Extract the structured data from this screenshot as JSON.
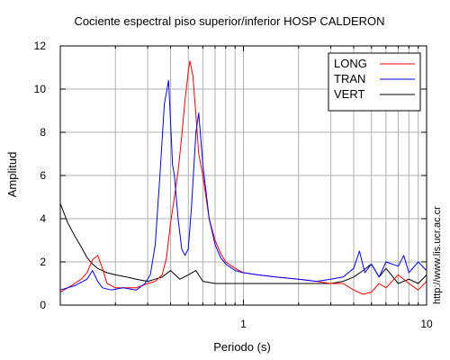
{
  "chart_data": {
    "type": "line",
    "title": "Cociente espectral piso superior/inferior  HOSP CALDERON",
    "xlabel": "Periodo (s)",
    "ylabel": "Amplitud",
    "xscale": "log",
    "xlim": [
      0.1,
      10
    ],
    "ylim": [
      0,
      12
    ],
    "x_ticks": [
      1,
      10
    ],
    "x_tick_labels": [
      "1",
      "10"
    ],
    "y_ticks": [
      0,
      2,
      4,
      6,
      8,
      10,
      12
    ],
    "y_tick_labels": [
      "0",
      "2",
      "4",
      "6",
      "8",
      "10",
      "12"
    ],
    "grid": true,
    "legend": {
      "position": "top-right",
      "entries": [
        "LONG",
        "TRAN",
        "VERT"
      ]
    },
    "series": [
      {
        "name": "LONG",
        "color": "#ff0000",
        "x": [
          0.1,
          0.11,
          0.12,
          0.13,
          0.14,
          0.15,
          0.16,
          0.17,
          0.18,
          0.2,
          0.23,
          0.26,
          0.3,
          0.33,
          0.36,
          0.38,
          0.4,
          0.42,
          0.44,
          0.46,
          0.48,
          0.5,
          0.51,
          0.53,
          0.55,
          0.57,
          0.6,
          0.65,
          0.7,
          0.75,
          0.8,
          0.9,
          1.0,
          1.2,
          1.5,
          2.0,
          2.5,
          3.0,
          3.5,
          4.0,
          4.5,
          5.0,
          5.5,
          6.0,
          7.0,
          8.0,
          9.0,
          10.0
        ],
        "y": [
          0.6,
          0.8,
          1.0,
          1.2,
          1.5,
          2.1,
          2.3,
          1.7,
          1.0,
          0.8,
          0.8,
          0.8,
          1.0,
          1.1,
          1.4,
          2.2,
          3.8,
          5.0,
          6.2,
          7.8,
          9.5,
          10.8,
          11.3,
          10.6,
          8.8,
          7.0,
          6.0,
          4.0,
          3.0,
          2.4,
          2.0,
          1.7,
          1.5,
          1.4,
          1.3,
          1.2,
          1.1,
          1.0,
          1.0,
          0.7,
          0.5,
          0.6,
          1.0,
          0.8,
          1.4,
          1.0,
          0.7,
          1.1
        ]
      },
      {
        "name": "TRAN",
        "color": "#0000ff",
        "x": [
          0.1,
          0.12,
          0.14,
          0.15,
          0.16,
          0.17,
          0.19,
          0.22,
          0.26,
          0.29,
          0.31,
          0.33,
          0.35,
          0.37,
          0.39,
          0.4,
          0.41,
          0.42,
          0.44,
          0.46,
          0.48,
          0.5,
          0.52,
          0.55,
          0.57,
          0.6,
          0.65,
          0.7,
          0.75,
          0.8,
          0.9,
          1.0,
          1.2,
          1.5,
          2.0,
          2.5,
          3.0,
          3.5,
          4.0,
          4.3,
          4.6,
          5.0,
          5.5,
          6.0,
          7.0,
          7.5,
          8.0,
          9.0,
          10.0
        ],
        "y": [
          0.7,
          0.9,
          1.2,
          1.6,
          1.1,
          0.8,
          0.7,
          0.8,
          0.7,
          1.0,
          1.4,
          2.8,
          6.0,
          9.3,
          10.4,
          8.5,
          6.5,
          6.0,
          4.0,
          2.6,
          2.3,
          2.6,
          4.5,
          8.0,
          8.9,
          6.5,
          4.0,
          2.8,
          2.2,
          1.9,
          1.6,
          1.5,
          1.4,
          1.3,
          1.2,
          1.1,
          1.2,
          1.3,
          1.7,
          2.5,
          1.5,
          1.9,
          1.3,
          2.0,
          1.8,
          2.3,
          1.5,
          2.0,
          1.6
        ]
      },
      {
        "name": "VERT",
        "color": "#000000",
        "x": [
          0.1,
          0.11,
          0.12,
          0.13,
          0.14,
          0.15,
          0.16,
          0.18,
          0.2,
          0.23,
          0.26,
          0.3,
          0.33,
          0.36,
          0.4,
          0.45,
          0.5,
          0.55,
          0.6,
          0.7,
          0.8,
          1.0,
          1.5,
          2.0,
          2.5,
          3.0,
          3.5,
          4.0,
          4.5,
          5.0,
          5.5,
          6.0,
          7.0,
          8.0,
          9.0,
          10.0
        ],
        "y": [
          4.7,
          3.8,
          3.2,
          2.7,
          2.2,
          1.9,
          1.7,
          1.5,
          1.4,
          1.3,
          1.2,
          1.1,
          1.2,
          1.3,
          1.6,
          1.2,
          1.4,
          1.6,
          1.1,
          1.0,
          1.0,
          1.0,
          1.0,
          1.0,
          1.0,
          1.0,
          1.1,
          1.3,
          1.6,
          1.9,
          1.3,
          1.7,
          1.0,
          1.2,
          1.0,
          1.4
        ]
      }
    ]
  },
  "side_label": "http://www.lis.ucr.ac.cr"
}
